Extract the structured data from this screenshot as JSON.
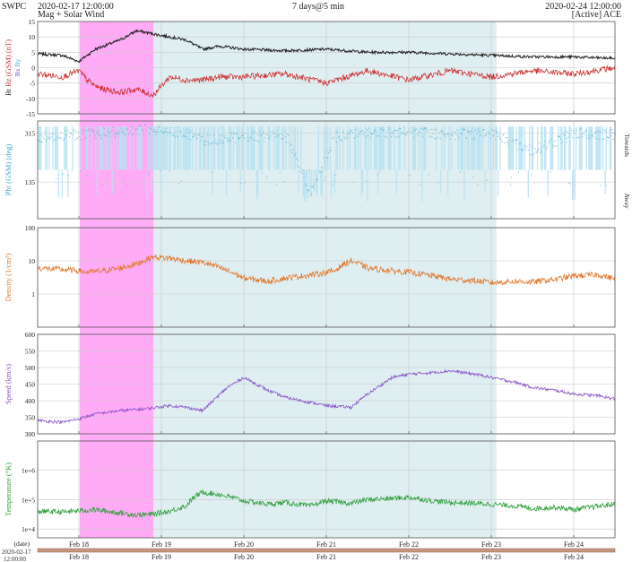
{
  "header": {
    "org": "SWPC",
    "start_time": "2020-02-17 12:00:00",
    "subtitle": "Mag + Solar Wind",
    "span": "7 days@5 min",
    "end_time": "2020-02-24 12:00:00",
    "source": "[Active] ACE"
  },
  "colors": {
    "bt": "#222222",
    "bz": "#cc3333",
    "phi": "#44a7c8",
    "phi_fill": "#b9e2f2",
    "density": "#e0762a",
    "speed": "#8a52c8",
    "temperature": "#2e9e3a",
    "magenta_band": "#ff9cf5",
    "blue_band": "#dcecf0",
    "grid": "#c8c8c8",
    "time_bar": "#c8967e"
  },
  "chart_data": {
    "type": "line",
    "time_range": [
      "2020-02-17 12:00:00",
      "2020-02-24 12:00:00"
    ],
    "date_label": "(date)",
    "date_start_lines": [
      "2020-02-17",
      "12:00:00"
    ],
    "x_ticks": [
      "Feb 18",
      "Feb 19",
      "Feb 20",
      "Feb 21",
      "Feb 22",
      "Feb 23",
      "Feb 24"
    ],
    "shaded_regions": [
      {
        "start": "2020-02-18 00:15",
        "end": "2020-02-18 21:45",
        "color": "magenta"
      },
      {
        "start": "2020-02-18 21:45",
        "end": "2020-02-23 01:30",
        "color": "light-blue"
      }
    ],
    "panels": [
      {
        "id": "mag",
        "ylabel_parts": [
          "Bt",
          "Bz (GSM) (nT)"
        ],
        "legend": [
          "Bx",
          "By"
        ],
        "ylim": [
          -15,
          15
        ],
        "yticks": [
          -15,
          -10,
          -5,
          0,
          5,
          10,
          15
        ],
        "series": [
          {
            "name": "Bt",
            "key": "bt",
            "t": [
              0,
              0.3,
              0.5,
              0.6,
              0.7,
              0.8,
              1.0,
              1.2,
              1.4,
              1.6,
              1.8,
              2.0,
              2.2,
              2.5,
              3.0,
              3.5,
              4.0,
              4.5,
              5.0,
              5.5,
              6.0,
              6.5,
              7.0
            ],
            "values": [
              4.5,
              4,
              2,
              4,
              6,
              7,
              9,
              12,
              11,
              10,
              9,
              6,
              7,
              6,
              5.5,
              6,
              5,
              5,
              4.5,
              4,
              3.5,
              3.5,
              3
            ]
          },
          {
            "name": "Bz",
            "key": "bz",
            "t": [
              0,
              0.3,
              0.5,
              0.6,
              0.7,
              0.8,
              1.0,
              1.2,
              1.4,
              1.6,
              1.8,
              2.0,
              2.2,
              2.5,
              3.0,
              3.5,
              4.0,
              4.5,
              5.0,
              5.5,
              6.0,
              6.5,
              7.0
            ],
            "values": [
              -2,
              -3,
              -1,
              -4,
              -6,
              -7,
              -8,
              -7,
              -9,
              -3,
              -4,
              -4,
              -3,
              -3,
              -2,
              -5,
              -1,
              -4,
              -1,
              -3,
              -1,
              -2,
              0
            ]
          }
        ]
      },
      {
        "id": "phi",
        "ylabel": "Phi (GSM) (deg)",
        "right_labels": [
          "Towards",
          "Away"
        ],
        "ylim": [
          0,
          360
        ],
        "yticks": [
          315,
          135
        ],
        "series": [
          {
            "name": "Phi",
            "key": "phi",
            "t": [
              0,
              0.5,
              1.0,
              1.4,
              1.8,
              2.0,
              2.5,
              3.0,
              3.3,
              3.6,
              4.0,
              4.5,
              5.0,
              5.5,
              6.0,
              6.5,
              7.0
            ],
            "values": [
              300,
              310,
              320,
              330,
              315,
              290,
              300,
              310,
              100,
              300,
              315,
              320,
              310,
              315,
              250,
              315,
              310
            ]
          }
        ]
      },
      {
        "id": "density",
        "ylabel": "Density (1/cm³)",
        "scale": "log",
        "ylim": [
          0.1,
          100
        ],
        "yticks": [
          1,
          10,
          100
        ],
        "series": [
          {
            "name": "Density",
            "key": "density",
            "t": [
              0,
              0.3,
              0.5,
              0.6,
              0.8,
              1.0,
              1.2,
              1.4,
              1.6,
              1.8,
              2.0,
              2.3,
              2.5,
              2.8,
              3.0,
              3.2,
              3.4,
              3.6,
              3.8,
              4.0,
              4.3,
              4.5,
              4.8,
              5.0,
              5.3,
              5.5,
              5.8,
              6.0,
              6.3,
              6.5,
              6.8,
              7.0
            ],
            "values": [
              6,
              5.5,
              5,
              4.5,
              5,
              6,
              8,
              13,
              12,
              10,
              9,
              5,
              3,
              2.4,
              3,
              3.5,
              4,
              5,
              10,
              6,
              5,
              4.5,
              3.5,
              2.8,
              2.5,
              2.2,
              2.4,
              2.3,
              2.8,
              3.5,
              3.8,
              2.8
            ]
          }
        ]
      },
      {
        "id": "speed",
        "ylabel": "Speed (km/s)",
        "ylim": [
          300,
          600
        ],
        "yticks": [
          300,
          350,
          400,
          450,
          500,
          550,
          600
        ],
        "series": [
          {
            "name": "Speed",
            "key": "speed",
            "t": [
              0,
              0.3,
              0.5,
              0.7,
              1.0,
              1.3,
              1.6,
              1.8,
              2.0,
              2.3,
              2.5,
              2.8,
              3.0,
              3.3,
              3.5,
              3.8,
              4.0,
              4.3,
              4.5,
              4.8,
              5.0,
              5.3,
              5.5,
              5.8,
              6.0,
              6.3,
              6.5,
              6.8,
              7.0
            ],
            "values": [
              340,
              335,
              345,
              360,
              370,
              375,
              385,
              380,
              370,
              440,
              470,
              430,
              410,
              395,
              385,
              380,
              420,
              470,
              480,
              485,
              490,
              480,
              470,
              455,
              440,
              430,
              420,
              415,
              405
            ]
          }
        ]
      },
      {
        "id": "temperature",
        "ylabel": "Temperature (°K)",
        "scale": "log",
        "ylim": [
          5000,
          10000000
        ],
        "yticks": [
          10000,
          100000,
          1000000
        ],
        "ytick_labels": [
          "1e+4",
          "1e+5",
          "1e+6"
        ],
        "series": [
          {
            "name": "Temperature",
            "key": "temperature",
            "t": [
              0,
              0.3,
              0.5,
              0.7,
              1.0,
              1.2,
              1.4,
              1.6,
              1.8,
              2.0,
              2.2,
              2.5,
              2.8,
              3.0,
              3.3,
              3.5,
              3.8,
              4.0,
              4.3,
              4.5,
              4.8,
              5.0,
              5.3,
              5.5,
              5.8,
              6.0,
              6.3,
              6.5,
              6.8,
              7.0
            ],
            "values": [
              40000,
              38000,
              42000,
              45000,
              35000,
              30000,
              32000,
              40000,
              60000,
              180000,
              150000,
              90000,
              70000,
              80000,
              60000,
              90000,
              75000,
              100000,
              110000,
              120000,
              90000,
              80000,
              75000,
              70000,
              60000,
              50000,
              55000,
              45000,
              60000,
              70000
            ]
          }
        ]
      }
    ]
  }
}
